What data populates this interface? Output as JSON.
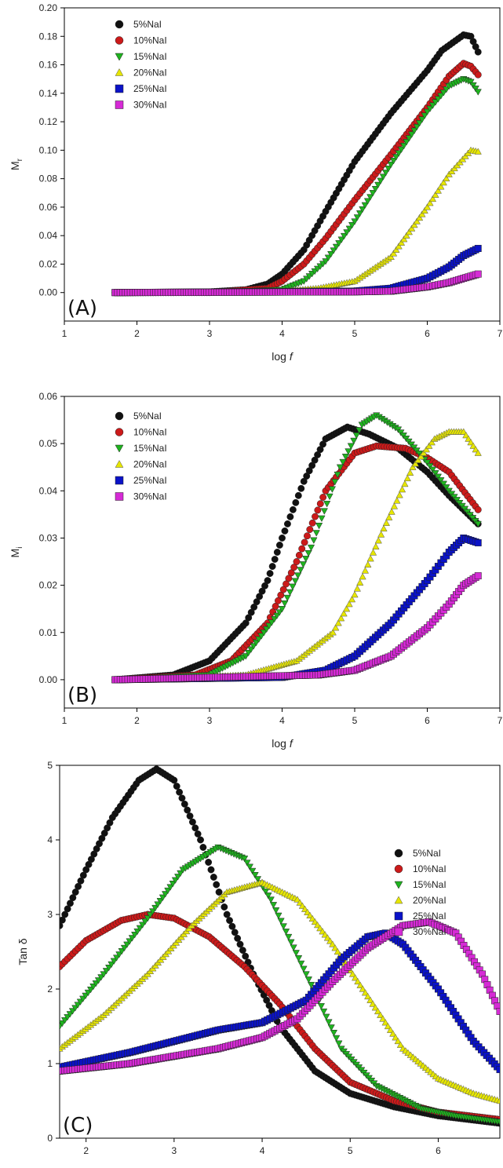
{
  "colors": {
    "5%NaI": "#111111",
    "10%NaI": "#cc1a1a",
    "15%NaI": "#1fb31f",
    "20%NaI": "#e6e600",
    "25%NaI": "#0a12c8",
    "30%NaI": "#d62ad6"
  },
  "markers": {
    "5%NaI": "circle",
    "10%NaI": "circle",
    "15%NaI": "triangle-down",
    "20%NaI": "triangle-up",
    "25%NaI": "square",
    "30%NaI": "square"
  },
  "chart_data": [
    {
      "type": "scatter",
      "panel_label": "(A)",
      "xlabel": "log f",
      "ylabel": "M",
      "ylabel_sub": "r",
      "xlim": [
        1,
        7
      ],
      "ylim": [
        -0.02,
        0.2
      ],
      "xticks": [
        1,
        2,
        3,
        4,
        5,
        6,
        7
      ],
      "yticks": [
        "0.00",
        "0.02",
        "0.04",
        "0.06",
        "0.08",
        "0.10",
        "0.12",
        "0.14",
        "0.16",
        "0.18",
        "0.20"
      ],
      "grid": false,
      "legend_position": "top-left",
      "series": [
        {
          "name": "5%NaI",
          "points": [
            [
              1.7,
              0
            ],
            [
              2.5,
              0
            ],
            [
              3.0,
              0.0005
            ],
            [
              3.5,
              0.002
            ],
            [
              3.8,
              0.006
            ],
            [
              4.0,
              0.013
            ],
            [
              4.3,
              0.03
            ],
            [
              4.6,
              0.057
            ],
            [
              5.0,
              0.092
            ],
            [
              5.5,
              0.126
            ],
            [
              6.0,
              0.156
            ],
            [
              6.2,
              0.17
            ],
            [
              6.5,
              0.181
            ],
            [
              6.6,
              0.18
            ],
            [
              6.7,
              0.169
            ]
          ]
        },
        {
          "name": "10%NaI",
          "points": [
            [
              1.7,
              0
            ],
            [
              3.0,
              0
            ],
            [
              3.8,
              0.003
            ],
            [
              4.0,
              0.008
            ],
            [
              4.3,
              0.02
            ],
            [
              4.6,
              0.038
            ],
            [
              5.0,
              0.065
            ],
            [
              5.5,
              0.097
            ],
            [
              6.0,
              0.13
            ],
            [
              6.3,
              0.152
            ],
            [
              6.5,
              0.161
            ],
            [
              6.6,
              0.159
            ],
            [
              6.7,
              0.153
            ]
          ]
        },
        {
          "name": "15%NaI",
          "points": [
            [
              1.7,
              0
            ],
            [
              3.0,
              0
            ],
            [
              4.0,
              0.002
            ],
            [
              4.3,
              0.008
            ],
            [
              4.6,
              0.022
            ],
            [
              5.0,
              0.05
            ],
            [
              5.5,
              0.09
            ],
            [
              6.0,
              0.127
            ],
            [
              6.3,
              0.145
            ],
            [
              6.5,
              0.15
            ],
            [
              6.6,
              0.148
            ],
            [
              6.7,
              0.141
            ]
          ]
        },
        {
          "name": "20%NaI",
          "points": [
            [
              1.7,
              0
            ],
            [
              4.0,
              0.001
            ],
            [
              4.5,
              0.003
            ],
            [
              5.0,
              0.008
            ],
            [
              5.5,
              0.025
            ],
            [
              6.0,
              0.06
            ],
            [
              6.3,
              0.083
            ],
            [
              6.6,
              0.1
            ],
            [
              6.7,
              0.099
            ]
          ]
        },
        {
          "name": "25%NaI",
          "points": [
            [
              1.7,
              0
            ],
            [
              5.0,
              0.001
            ],
            [
              5.5,
              0.003
            ],
            [
              6.0,
              0.01
            ],
            [
              6.3,
              0.018
            ],
            [
              6.5,
              0.026
            ],
            [
              6.7,
              0.031
            ]
          ]
        },
        {
          "name": "30%NaI",
          "points": [
            [
              1.7,
              0
            ],
            [
              5.0,
              0.0005
            ],
            [
              5.5,
              0.001
            ],
            [
              6.0,
              0.004
            ],
            [
              6.3,
              0.007
            ],
            [
              6.5,
              0.01
            ],
            [
              6.7,
              0.013
            ]
          ]
        }
      ]
    },
    {
      "type": "scatter",
      "panel_label": "(B)",
      "xlabel": "log f",
      "ylabel": "M",
      "ylabel_sub": "i",
      "xlim": [
        1,
        7
      ],
      "ylim": [
        -0.006,
        0.06
      ],
      "xticks": [
        1,
        2,
        3,
        4,
        5,
        6,
        7
      ],
      "yticks": [
        "0.00",
        "0.01",
        "0.02",
        "0.03",
        "0.04",
        "0.05",
        "0.06"
      ],
      "grid": false,
      "legend_position": "top-left",
      "series": [
        {
          "name": "5%NaI",
          "points": [
            [
              1.7,
              0
            ],
            [
              2.5,
              0.001
            ],
            [
              3.0,
              0.004
            ],
            [
              3.5,
              0.012
            ],
            [
              3.8,
              0.021
            ],
            [
              4.0,
              0.03
            ],
            [
              4.3,
              0.042
            ],
            [
              4.6,
              0.051
            ],
            [
              4.9,
              0.0535
            ],
            [
              5.2,
              0.052
            ],
            [
              5.6,
              0.049
            ],
            [
              6.0,
              0.044
            ],
            [
              6.3,
              0.039
            ],
            [
              6.7,
              0.033
            ]
          ]
        },
        {
          "name": "10%NaI",
          "points": [
            [
              1.7,
              0
            ],
            [
              2.8,
              0.001
            ],
            [
              3.3,
              0.004
            ],
            [
              3.8,
              0.012
            ],
            [
              4.2,
              0.025
            ],
            [
              4.6,
              0.04
            ],
            [
              5.0,
              0.048
            ],
            [
              5.3,
              0.0495
            ],
            [
              5.7,
              0.049
            ],
            [
              6.0,
              0.047
            ],
            [
              6.3,
              0.044
            ],
            [
              6.7,
              0.036
            ]
          ]
        },
        {
          "name": "15%NaI",
          "points": [
            [
              1.7,
              0
            ],
            [
              3.0,
              0.001
            ],
            [
              3.5,
              0.005
            ],
            [
              4.0,
              0.015
            ],
            [
              4.4,
              0.028
            ],
            [
              4.8,
              0.045
            ],
            [
              5.1,
              0.054
            ],
            [
              5.3,
              0.056
            ],
            [
              5.6,
              0.053
            ],
            [
              6.0,
              0.046
            ],
            [
              6.3,
              0.04
            ],
            [
              6.7,
              0.033
            ]
          ]
        },
        {
          "name": "20%NaI",
          "points": [
            [
              1.7,
              0
            ],
            [
              3.5,
              0.001
            ],
            [
              4.2,
              0.004
            ],
            [
              4.7,
              0.01
            ],
            [
              5.0,
              0.018
            ],
            [
              5.4,
              0.032
            ],
            [
              5.8,
              0.045
            ],
            [
              6.1,
              0.051
            ],
            [
              6.3,
              0.0525
            ],
            [
              6.5,
              0.0525
            ],
            [
              6.7,
              0.048
            ]
          ]
        },
        {
          "name": "25%NaI",
          "points": [
            [
              1.7,
              0
            ],
            [
              4.0,
              0.0005
            ],
            [
              4.6,
              0.002
            ],
            [
              5.0,
              0.005
            ],
            [
              5.5,
              0.012
            ],
            [
              6.0,
              0.021
            ],
            [
              6.3,
              0.027
            ],
            [
              6.5,
              0.03
            ],
            [
              6.7,
              0.029
            ]
          ]
        },
        {
          "name": "30%NaI",
          "points": [
            [
              1.7,
              0
            ],
            [
              4.5,
              0.001
            ],
            [
              5.0,
              0.002
            ],
            [
              5.5,
              0.005
            ],
            [
              6.0,
              0.011
            ],
            [
              6.3,
              0.016
            ],
            [
              6.5,
              0.02
            ],
            [
              6.7,
              0.022
            ]
          ]
        }
      ]
    },
    {
      "type": "scatter",
      "panel_label": "(C)",
      "xlabel": "log f",
      "ylabel": "Tan δ",
      "ylabel_sub": "",
      "xlim": [
        1.7,
        6.7
      ],
      "ylim": [
        0,
        5
      ],
      "xticks": [
        2,
        3,
        4,
        5,
        6
      ],
      "yticks": [
        "0",
        "1",
        "2",
        "3",
        "4",
        "5"
      ],
      "grid": false,
      "legend_position": "top-right",
      "series": [
        {
          "name": "5%NaI",
          "points": [
            [
              1.7,
              2.85
            ],
            [
              2.0,
              3.6
            ],
            [
              2.3,
              4.3
            ],
            [
              2.6,
              4.8
            ],
            [
              2.8,
              4.95
            ],
            [
              3.0,
              4.8
            ],
            [
              3.3,
              4.0
            ],
            [
              3.6,
              3.0
            ],
            [
              3.9,
              2.2
            ],
            [
              4.2,
              1.5
            ],
            [
              4.6,
              0.9
            ],
            [
              5.0,
              0.6
            ],
            [
              5.5,
              0.42
            ],
            [
              6.0,
              0.3
            ],
            [
              6.7,
              0.2
            ]
          ]
        },
        {
          "name": "10%NaI",
          "points": [
            [
              1.7,
              2.3
            ],
            [
              2.0,
              2.65
            ],
            [
              2.4,
              2.92
            ],
            [
              2.7,
              3.0
            ],
            [
              3.0,
              2.95
            ],
            [
              3.4,
              2.7
            ],
            [
              3.8,
              2.3
            ],
            [
              4.2,
              1.8
            ],
            [
              4.6,
              1.2
            ],
            [
              5.0,
              0.75
            ],
            [
              5.5,
              0.5
            ],
            [
              6.0,
              0.35
            ],
            [
              6.7,
              0.25
            ]
          ]
        },
        {
          "name": "15%NaI",
          "points": [
            [
              1.7,
              1.5
            ],
            [
              2.2,
              2.2
            ],
            [
              2.7,
              2.95
            ],
            [
              3.1,
              3.6
            ],
            [
              3.5,
              3.9
            ],
            [
              3.8,
              3.75
            ],
            [
              4.1,
              3.2
            ],
            [
              4.5,
              2.2
            ],
            [
              4.9,
              1.2
            ],
            [
              5.3,
              0.7
            ],
            [
              5.8,
              0.4
            ],
            [
              6.2,
              0.3
            ],
            [
              6.7,
              0.22
            ]
          ]
        },
        {
          "name": "20%NaI",
          "points": [
            [
              1.7,
              1.2
            ],
            [
              2.2,
              1.65
            ],
            [
              2.7,
              2.2
            ],
            [
              3.2,
              2.85
            ],
            [
              3.6,
              3.3
            ],
            [
              4.0,
              3.43
            ],
            [
              4.4,
              3.2
            ],
            [
              4.8,
              2.6
            ],
            [
              5.2,
              1.9
            ],
            [
              5.6,
              1.2
            ],
            [
              6.0,
              0.8
            ],
            [
              6.4,
              0.6
            ],
            [
              6.7,
              0.5
            ]
          ]
        },
        {
          "name": "25%NaI",
          "points": [
            [
              1.7,
              0.95
            ],
            [
              2.5,
              1.15
            ],
            [
              3.0,
              1.3
            ],
            [
              3.5,
              1.45
            ],
            [
              4.0,
              1.55
            ],
            [
              4.5,
              1.85
            ],
            [
              4.9,
              2.4
            ],
            [
              5.2,
              2.7
            ],
            [
              5.4,
              2.75
            ],
            [
              5.6,
              2.6
            ],
            [
              6.0,
              2.0
            ],
            [
              6.4,
              1.3
            ],
            [
              6.7,
              0.92
            ]
          ]
        },
        {
          "name": "30%NaI",
          "points": [
            [
              1.7,
              0.9
            ],
            [
              2.5,
              1.0
            ],
            [
              3.0,
              1.1
            ],
            [
              3.5,
              1.2
            ],
            [
              4.0,
              1.35
            ],
            [
              4.4,
              1.6
            ],
            [
              4.8,
              2.1
            ],
            [
              5.2,
              2.55
            ],
            [
              5.6,
              2.85
            ],
            [
              5.9,
              2.9
            ],
            [
              6.2,
              2.75
            ],
            [
              6.5,
              2.2
            ],
            [
              6.7,
              1.7
            ]
          ]
        }
      ]
    }
  ]
}
